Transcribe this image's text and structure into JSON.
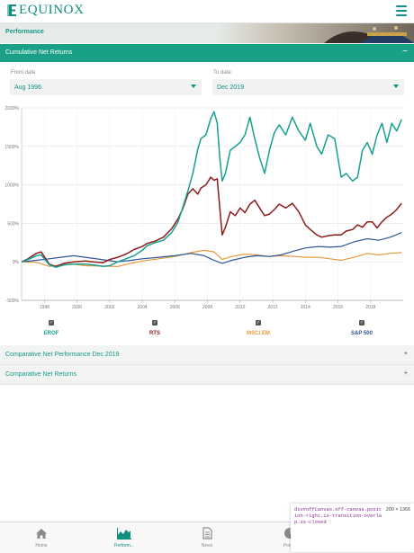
{
  "app": {
    "brand": "EQUINOX",
    "colors": {
      "accent": "#19a085",
      "brand": "#0f8f7f",
      "header_bg": "#e6ebe9"
    }
  },
  "header": {
    "menu_icon": "hamburger-icon"
  },
  "performance": {
    "title": "Performance"
  },
  "cumulative_section": {
    "label": "Cumulative Net Returns",
    "toggle": "−"
  },
  "filters": {
    "from_label": "From date",
    "from_value": "Aug 1996",
    "to_label": "To date",
    "to_value": "Dec 2019"
  },
  "chart_data": {
    "type": "line",
    "title": "",
    "xlabel": "",
    "ylabel": "",
    "xlim": [
      1996.6,
      2020.0
    ],
    "ylim": [
      -500,
      2000
    ],
    "y_ticks": [
      "2000%",
      "1500%",
      "1000%",
      "500%",
      "0%",
      "-500%"
    ],
    "y_tick_values": [
      2000,
      1500,
      1000,
      500,
      0,
      -500
    ],
    "x_ticks": [
      "1998",
      "2000",
      "2002",
      "2004",
      "2006",
      "2008",
      "2010",
      "2012",
      "2014",
      "2016",
      "2018"
    ],
    "x_tick_values": [
      1998,
      2000,
      2002,
      2004,
      2006,
      2008,
      2010,
      2012,
      2014,
      2016,
      2018
    ],
    "grid": true,
    "series": [
      {
        "name": "EROF",
        "color": "#17a08f",
        "x": [
          1996.6,
          1997.0,
          1997.5,
          1997.8,
          1998.3,
          1998.7,
          1999.2,
          1999.8,
          2000.5,
          2001.0,
          2001.6,
          2002.0,
          2002.5,
          2003.0,
          2003.5,
          2004.0,
          2004.3,
          2004.8,
          2005.3,
          2005.8,
          2006.2,
          2006.5,
          2006.8,
          2007.1,
          2007.4,
          2007.6,
          2007.9,
          2008.2,
          2008.4,
          2008.6,
          2008.75,
          2008.9,
          2009.1,
          2009.4,
          2009.7,
          2010.0,
          2010.3,
          2010.6,
          2010.9,
          2011.2,
          2011.5,
          2011.8,
          2012.1,
          2012.4,
          2012.8,
          2013.2,
          2013.6,
          2014.0,
          2014.3,
          2014.7,
          2015.0,
          2015.4,
          2015.8,
          2016.2,
          2016.5,
          2016.9,
          2017.2,
          2017.5,
          2017.8,
          2018.1,
          2018.4,
          2018.7,
          2019.0,
          2019.3,
          2019.6,
          2019.9
        ],
        "y": [
          0,
          30,
          80,
          90,
          -40,
          -70,
          -40,
          -30,
          -30,
          -40,
          -60,
          -50,
          0,
          40,
          80,
          150,
          210,
          250,
          280,
          380,
          520,
          720,
          920,
          1150,
          1460,
          1600,
          1650,
          1860,
          1950,
          1800,
          1350,
          1050,
          1150,
          1450,
          1500,
          1550,
          1650,
          1880,
          1600,
          1350,
          1150,
          1450,
          1680,
          1780,
          1650,
          1880,
          1700,
          1580,
          1800,
          1500,
          1400,
          1650,
          1600,
          1100,
          1150,
          1050,
          1100,
          1450,
          1550,
          1400,
          1650,
          1800,
          1550,
          1800,
          1700,
          1850
        ]
      },
      {
        "name": "RTS",
        "color": "#8b1c1c",
        "x": [
          1996.6,
          1997.0,
          1997.5,
          1997.8,
          1998.3,
          1998.7,
          1999.2,
          1999.8,
          2000.5,
          2001.0,
          2001.6,
          2002.0,
          2002.5,
          2003.0,
          2003.5,
          2004.0,
          2004.3,
          2004.8,
          2005.3,
          2005.8,
          2006.2,
          2006.5,
          2006.8,
          2007.1,
          2007.4,
          2007.6,
          2007.9,
          2008.2,
          2008.4,
          2008.6,
          2008.75,
          2008.9,
          2009.1,
          2009.4,
          2009.7,
          2010.0,
          2010.3,
          2010.6,
          2010.9,
          2011.2,
          2011.5,
          2011.8,
          2012.1,
          2012.4,
          2012.8,
          2013.2,
          2013.6,
          2014.0,
          2014.3,
          2014.7,
          2015.0,
          2015.4,
          2015.8,
          2016.2,
          2016.5,
          2016.9,
          2017.2,
          2017.5,
          2017.8,
          2018.1,
          2018.4,
          2018.7,
          2019.0,
          2019.3,
          2019.6,
          2019.9
        ],
        "y": [
          0,
          40,
          110,
          130,
          -30,
          -60,
          -20,
          0,
          10,
          0,
          -10,
          30,
          60,
          100,
          160,
          200,
          240,
          270,
          320,
          430,
          560,
          700,
          880,
          950,
          880,
          960,
          1000,
          1100,
          1060,
          1080,
          700,
          350,
          450,
          650,
          600,
          700,
          640,
          750,
          800,
          700,
          600,
          620,
          680,
          750,
          700,
          760,
          650,
          480,
          420,
          350,
          320,
          340,
          350,
          350,
          400,
          420,
          480,
          450,
          520,
          520,
          440,
          520,
          580,
          620,
          680,
          760
        ]
      },
      {
        "name": "MSCI EM",
        "color": "#e49a3e",
        "x": [
          1996.6,
          1997.5,
          1998.3,
          1999.0,
          1999.8,
          2000.5,
          2001.5,
          2002.5,
          2003.3,
          2004.0,
          2005.0,
          2006.0,
          2007.0,
          2007.8,
          2008.4,
          2008.9,
          2009.5,
          2010.3,
          2011.0,
          2011.8,
          2012.5,
          2013.3,
          2014.0,
          2014.8,
          2015.5,
          2016.2,
          2017.0,
          2017.8,
          2018.5,
          2019.2,
          2019.9
        ],
        "y": [
          0,
          -5,
          -60,
          -40,
          -30,
          -50,
          -55,
          -60,
          -20,
          10,
          40,
          70,
          120,
          150,
          130,
          30,
          70,
          100,
          90,
          70,
          80,
          70,
          60,
          60,
          40,
          20,
          60,
          110,
          90,
          110,
          120
        ]
      },
      {
        "name": "S&P 500",
        "color": "#2f5597",
        "x": [
          1996.6,
          1997.5,
          1998.3,
          1999.0,
          1999.8,
          2000.5,
          2001.5,
          2002.5,
          2003.3,
          2004.0,
          2005.0,
          2006.0,
          2007.0,
          2007.8,
          2008.4,
          2008.9,
          2009.5,
          2010.3,
          2011.0,
          2011.8,
          2012.5,
          2013.3,
          2014.0,
          2014.8,
          2015.5,
          2016.2,
          2017.0,
          2017.8,
          2018.5,
          2019.2,
          2019.9
        ],
        "y": [
          0,
          20,
          40,
          60,
          80,
          60,
          30,
          0,
          20,
          40,
          60,
          80,
          110,
          80,
          20,
          -20,
          20,
          60,
          80,
          70,
          90,
          140,
          180,
          200,
          190,
          200,
          260,
          300,
          280,
          320,
          380
        ]
      }
    ]
  },
  "legend": [
    {
      "name": "EROF",
      "color": "#17a08f"
    },
    {
      "name": "RTS",
      "color": "#8b1c1c"
    },
    {
      "name": "MSCI EM",
      "color": "#e49a3e"
    },
    {
      "name": "S&P 500",
      "color": "#2f5597"
    }
  ],
  "accordions": [
    {
      "label": "Comparative Net Performance Dec 2019",
      "toggle": "+"
    },
    {
      "label": "Comparative Net Returns",
      "toggle": "+"
    }
  ],
  "tabbar": {
    "tabs": [
      {
        "label": "Home",
        "icon": "home-icon"
      },
      {
        "label": "Perform...",
        "icon": "area-chart-icon"
      },
      {
        "label": "News",
        "icon": "document-icon"
      },
      {
        "label": "Portf...",
        "icon": "pie-chart-icon"
      }
    ]
  },
  "devtools_tooltip": {
    "selector": "div#offCanvas.off-canvas.position-right.is-transition-overlap.is-closed",
    "dimensions": "200 × 1366"
  }
}
